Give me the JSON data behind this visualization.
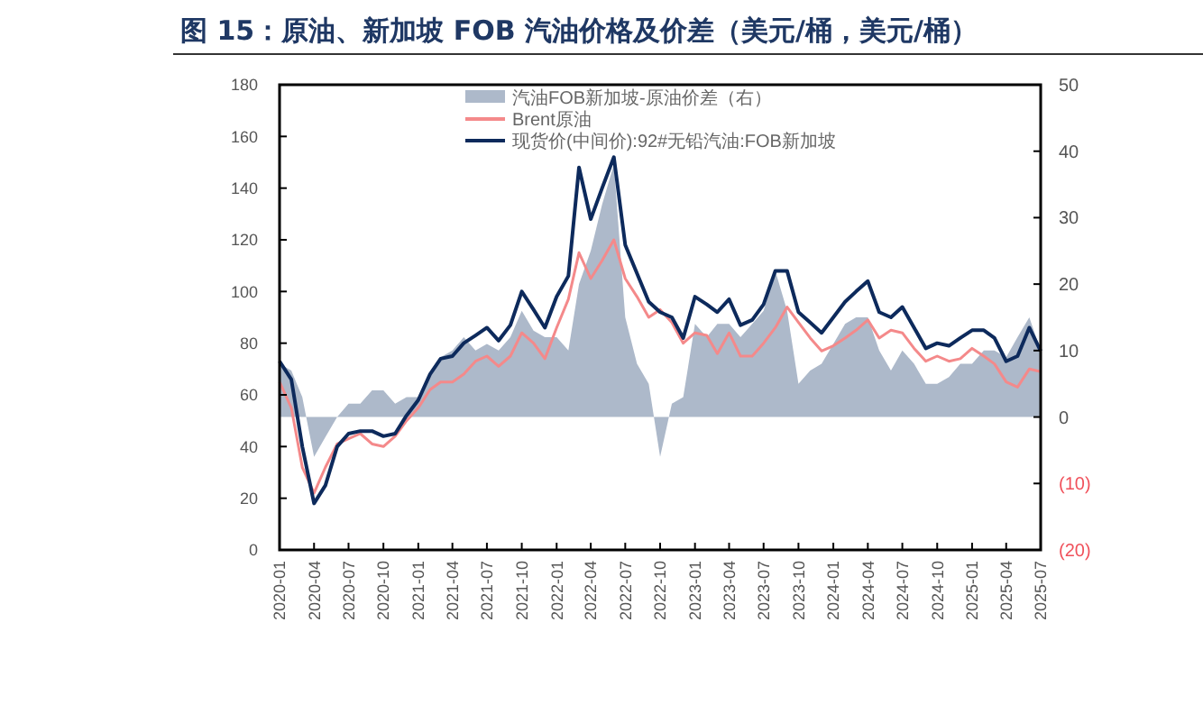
{
  "chart_data": {
    "type": "line",
    "title": "图 15：原油、新加坡 FOB 汽油价格及价差（美元/桶，美元/桶）",
    "x": [
      "2020-01",
      "2020-02",
      "2020-03",
      "2020-04",
      "2020-05",
      "2020-06",
      "2020-07",
      "2020-08",
      "2020-09",
      "2020-10",
      "2020-11",
      "2020-12",
      "2021-01",
      "2021-02",
      "2021-03",
      "2021-04",
      "2021-05",
      "2021-06",
      "2021-07",
      "2021-08",
      "2021-09",
      "2021-10",
      "2021-11",
      "2021-12",
      "2022-01",
      "2022-02",
      "2022-03",
      "2022-04",
      "2022-05",
      "2022-06",
      "2022-07",
      "2022-08",
      "2022-09",
      "2022-10",
      "2022-11",
      "2022-12",
      "2023-01",
      "2023-02",
      "2023-03",
      "2023-04",
      "2023-05",
      "2023-06",
      "2023-07",
      "2023-08",
      "2023-09",
      "2023-10",
      "2023-11",
      "2023-12",
      "2024-01",
      "2024-02",
      "2024-03",
      "2024-04",
      "2024-05",
      "2024-06",
      "2024-07",
      "2024-08",
      "2024-09",
      "2024-10",
      "2024-11",
      "2024-12",
      "2025-01",
      "2025-02",
      "2025-03",
      "2025-04",
      "2025-05",
      "2025-06",
      "2025-07"
    ],
    "series": [
      {
        "name": "汽油FOB新加坡-原油价差（右）",
        "type": "area",
        "axis": "y2",
        "color": "#adb9ca",
        "values": [
          8,
          7,
          3,
          -6,
          -3,
          0,
          2,
          2,
          4,
          4,
          2,
          3,
          3,
          6,
          9,
          10,
          12,
          10,
          11,
          10,
          12,
          16,
          13,
          12,
          12,
          10,
          20,
          25,
          32,
          38,
          15,
          8,
          5,
          -6,
          2,
          3,
          14,
          12,
          14,
          14,
          12,
          14,
          16,
          22,
          16,
          5,
          7,
          8,
          11,
          14,
          15,
          15,
          10,
          7,
          10,
          8,
          5,
          5,
          6,
          8,
          8,
          10,
          10,
          9,
          12,
          15,
          10
        ]
      },
      {
        "name": "Brent原油",
        "color": "#f4898a",
        "values": [
          65,
          55,
          32,
          22,
          32,
          41,
          43,
          45,
          41,
          40,
          44,
          50,
          55,
          62,
          65,
          65,
          68,
          73,
          75,
          71,
          75,
          84,
          80,
          74,
          86,
          97,
          115,
          105,
          112,
          120,
          105,
          98,
          90,
          93,
          88,
          80,
          84,
          83,
          76,
          84,
          75,
          75,
          80,
          86,
          94,
          88,
          82,
          77,
          79,
          82,
          85,
          89,
          82,
          85,
          84,
          78,
          73,
          75,
          73,
          74,
          78,
          75,
          72,
          65,
          63,
          70,
          69
        ]
      },
      {
        "name": "现货价(中间价):92#无铅汽油:FOB新加坡",
        "color": "#0d2a5c",
        "values": [
          73,
          66,
          40,
          18,
          25,
          40,
          45,
          46,
          46,
          44,
          45,
          52,
          58,
          68,
          74,
          75,
          80,
          83,
          86,
          81,
          87,
          100,
          93,
          86,
          98,
          106,
          148,
          128,
          140,
          152,
          118,
          107,
          96,
          92,
          90,
          82,
          98,
          95,
          92,
          97,
          87,
          89,
          95,
          108,
          108,
          92,
          88,
          84,
          90,
          96,
          100,
          104,
          92,
          90,
          94,
          86,
          78,
          80,
          79,
          82,
          85,
          85,
          82,
          73,
          75,
          86,
          77
        ]
      }
    ],
    "xlim": [
      "2020-01",
      "2025-07"
    ],
    "xticks": [
      "2020-01",
      "2020-04",
      "2020-07",
      "2020-10",
      "2021-01",
      "2021-04",
      "2021-07",
      "2021-10",
      "2022-01",
      "2022-04",
      "2022-07",
      "2022-10",
      "2023-01",
      "2023-04",
      "2023-07",
      "2023-10",
      "2024-01",
      "2024-04",
      "2024-07",
      "2024-10",
      "2025-01",
      "2025-04",
      "2025-07"
    ],
    "ylim": [
      0,
      180
    ],
    "yticks": [
      0,
      20,
      40,
      60,
      80,
      100,
      120,
      140,
      160,
      180
    ],
    "y2lim": [
      -20,
      50
    ],
    "y2ticks": [
      {
        "value": -20,
        "label": "(20)"
      },
      {
        "value": -10,
        "label": "(10)"
      },
      0,
      10,
      20,
      30,
      40,
      50
    ],
    "legend": "top",
    "grid": false
  }
}
